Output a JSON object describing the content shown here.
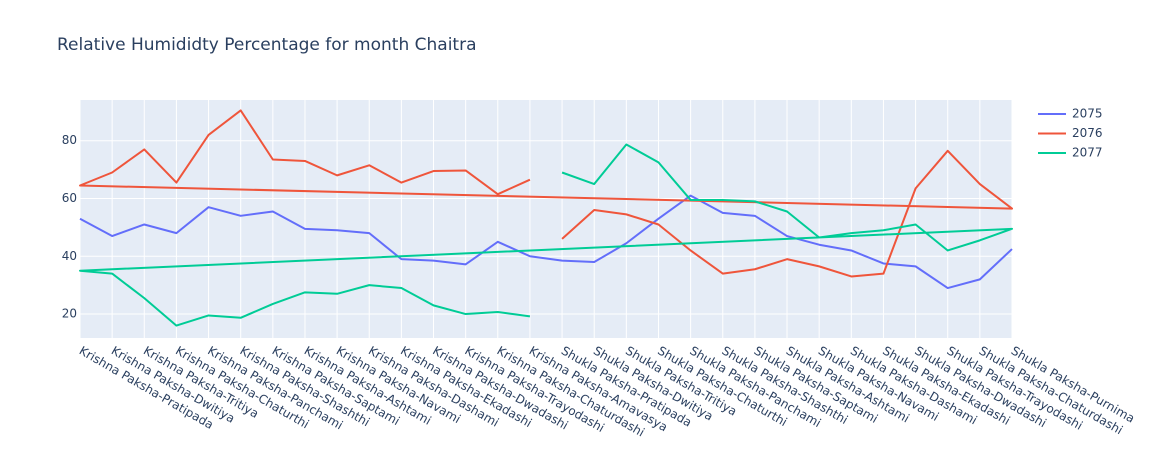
{
  "chart_data": {
    "type": "line",
    "title": "Relative Humididty Percentage for month Chaitra",
    "categories": [
      "Krishna Paksha-Pratipada",
      "Krishna Paksha-Dwitiya",
      "Krishna Paksha-Tritiya",
      "Krishna Paksha-Chaturthi",
      "Krishna Paksha-Panchami",
      "Krishna Paksha-Shashthi",
      "Krishna Paksha-Saptami",
      "Krishna Paksha-Ashtami",
      "Krishna Paksha-Navami",
      "Krishna Paksha-Dashami",
      "Krishna Paksha-Ekadashi",
      "Krishna Paksha-Dwadashi",
      "Krishna Paksha-Trayodashi",
      "Krishna Paksha-Chaturdashi",
      "Krishna Paksha-Amavasya",
      "Shukla Paksha-Pratipada",
      "Shukla Paksha-Dwitiya",
      "Shukla Paksha-Tritiya",
      "Shukla Paksha-Chaturthi",
      "Shukla Paksha-Panchami",
      "Shukla Paksha-Shashthi",
      "Shukla Paksha-Saptami",
      "Shukla Paksha-Ashtami",
      "Shukla Paksha-Navami",
      "Shukla Paksha-Dashami",
      "Shukla Paksha-Ekadashi",
      "Shukla Paksha-Dwadashi",
      "Shukla Paksha-Trayodashi",
      "Shukla Paksha-Chaturdashi",
      "Shukla Paksha-Purnima"
    ],
    "series": [
      {
        "name": "2075",
        "color": "#636efa",
        "x": [
          "Krishna Paksha-Pratipada",
          "Krishna Paksha-Dwitiya",
          "Krishna Paksha-Tritiya",
          "Krishna Paksha-Chaturthi",
          "Krishna Paksha-Panchami",
          "Krishna Paksha-Shashthi",
          "Krishna Paksha-Saptami",
          "Krishna Paksha-Ashtami",
          "Krishna Paksha-Navami",
          "Krishna Paksha-Dashami",
          "Krishna Paksha-Ekadashi",
          "Krishna Paksha-Dwadashi",
          "Krishna Paksha-Trayodashi",
          "Krishna Paksha-Chaturdashi",
          "Krishna Paksha-Amavasya",
          "Shukla Paksha-Pratipada",
          "Shukla Paksha-Dwitiya",
          "Shukla Paksha-Tritiya",
          "Shukla Paksha-Chaturthi",
          "Shukla Paksha-Panchami",
          "Shukla Paksha-Shashthi",
          "Shukla Paksha-Saptami",
          "Shukla Paksha-Ashtami",
          "Shukla Paksha-Navami",
          "Shukla Paksha-Dashami",
          "Shukla Paksha-Ekadashi",
          "Shukla Paksha-Dwadashi",
          "Shukla Paksha-Trayodashi",
          "Shukla Paksha-Chaturdashi",
          "Shukla Paksha-Purnima"
        ],
        "values": [
          53,
          47,
          51,
          48,
          57,
          54,
          55.5,
          49.5,
          49,
          48,
          39,
          38.5,
          37.2,
          45,
          40,
          38.5,
          38,
          44.5,
          53,
          61,
          55,
          54,
          47,
          44,
          42,
          37.5,
          36.5,
          29,
          32,
          42.5
        ]
      },
      {
        "name": "2076",
        "color": "#EF553B",
        "x": [
          "Shukla Paksha-Pratipada",
          "Shukla Paksha-Dwitiya",
          "Shukla Paksha-Tritiya",
          "Shukla Paksha-Chaturthi",
          "Shukla Paksha-Panchami",
          "Shukla Paksha-Shashthi",
          "Shukla Paksha-Saptami",
          "Shukla Paksha-Ashtami",
          "Shukla Paksha-Navami",
          "Shukla Paksha-Dashami",
          "Shukla Paksha-Ekadashi",
          "Shukla Paksha-Dwadashi",
          "Shukla Paksha-Trayodashi",
          "Shukla Paksha-Chaturdashi",
          "Shukla Paksha-Purnima",
          "Krishna Paksha-Pratipada",
          "Krishna Paksha-Dwitiya",
          "Krishna Paksha-Tritiya",
          "Krishna Paksha-Chaturthi",
          "Krishna Paksha-Panchami",
          "Krishna Paksha-Shashthi",
          "Krishna Paksha-Saptami",
          "Krishna Paksha-Ashtami",
          "Krishna Paksha-Navami",
          "Krishna Paksha-Dashami",
          "Krishna Paksha-Ekadashi",
          "Krishna Paksha-Dwadashi",
          "Krishna Paksha-Trayodashi",
          "Krishna Paksha-Chaturdashi",
          "Krishna Paksha-Amavasya"
        ],
        "values": [
          46,
          56,
          54.5,
          51,
          42,
          34,
          35.5,
          39,
          36.5,
          33,
          34,
          63.5,
          76.5,
          65,
          56.5,
          64.5,
          69,
          77,
          65.5,
          82,
          90.5,
          73.5,
          73,
          68,
          71.5,
          65.5,
          69.5,
          69.7,
          61.5,
          66.5
        ]
      },
      {
        "name": "2077",
        "color": "#00cc96",
        "x": [
          "Shukla Paksha-Pratipada",
          "Shukla Paksha-Dwitiya",
          "Shukla Paksha-Tritiya",
          "Shukla Paksha-Chaturthi",
          "Shukla Paksha-Panchami",
          "Shukla Paksha-Shashthi",
          "Shukla Paksha-Saptami",
          "Shukla Paksha-Ashtami",
          "Shukla Paksha-Navami",
          "Shukla Paksha-Dashami",
          "Shukla Paksha-Ekadashi",
          "Shukla Paksha-Dwadashi",
          "Shukla Paksha-Trayodashi",
          "Shukla Paksha-Chaturdashi",
          "Shukla Paksha-Purnima",
          "Krishna Paksha-Pratipada",
          "Krishna Paksha-Dwitiya",
          "Krishna Paksha-Tritiya",
          "Krishna Paksha-Chaturthi",
          "Krishna Paksha-Panchami",
          "Krishna Paksha-Shashthi",
          "Krishna Paksha-Saptami",
          "Krishna Paksha-Ashtami",
          "Krishna Paksha-Navami",
          "Krishna Paksha-Dashami",
          "Krishna Paksha-Ekadashi",
          "Krishna Paksha-Dwadashi",
          "Krishna Paksha-Trayodashi",
          "Krishna Paksha-Chaturdashi",
          "Krishna Paksha-Amavasya"
        ],
        "values": [
          69,
          65,
          78.7,
          72.5,
          59.5,
          59.5,
          59,
          55.5,
          46.5,
          48,
          49,
          51,
          42,
          45.5,
          49.5,
          35,
          34,
          25.5,
          16,
          19.5,
          18.7,
          23.5,
          27.5,
          27,
          30,
          29,
          23,
          20,
          20.7,
          19.2
        ]
      }
    ],
    "ylim": [
      11.7,
      94.1
    ],
    "yticks": [
      20,
      40,
      60,
      80
    ],
    "grid": true
  }
}
